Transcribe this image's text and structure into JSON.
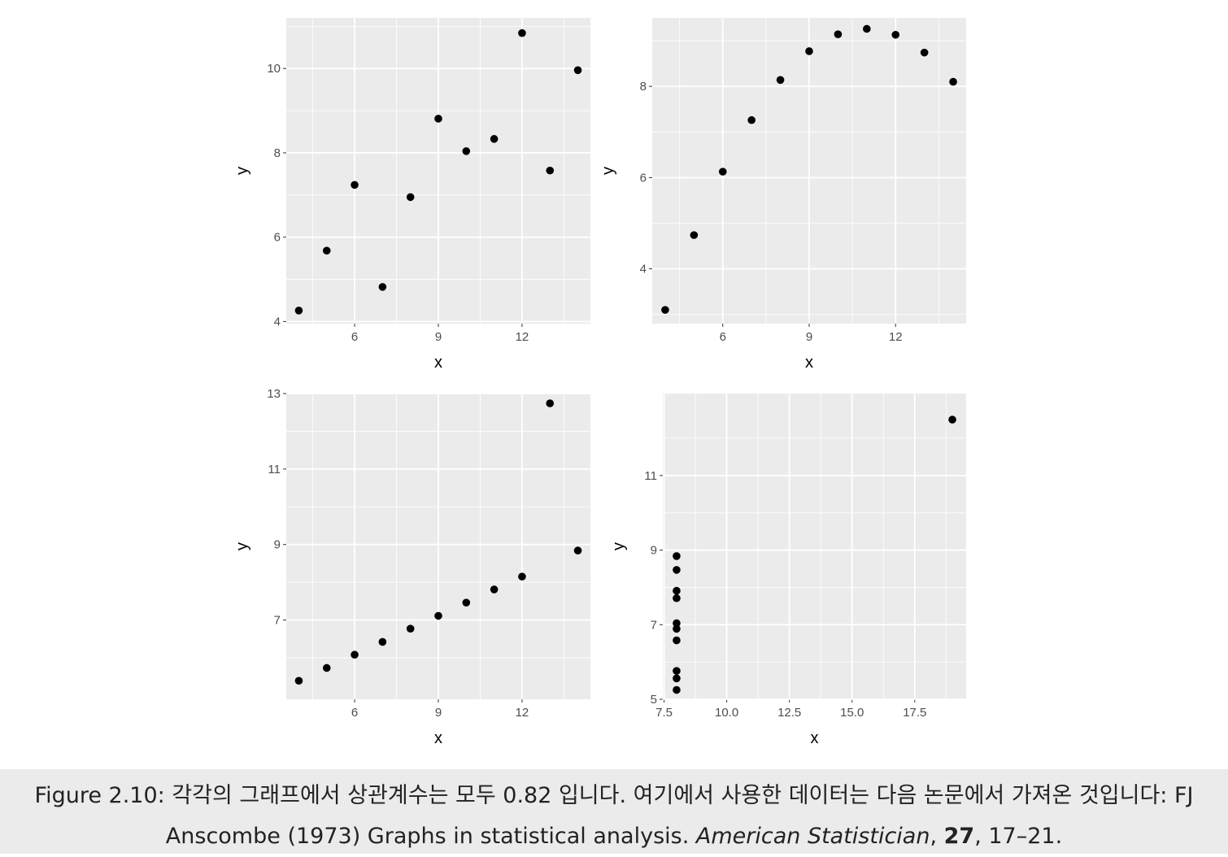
{
  "colors": {
    "panel_background": "#ebebeb",
    "gridline": "#ffffff",
    "point": "#000000",
    "tick_label": "#4d4d4d",
    "axis_title": "#000000"
  },
  "chart_data": [
    {
      "type": "scatter",
      "xlabel": "x",
      "ylabel": "y",
      "x_ticks": [
        "6",
        "9",
        "12"
      ],
      "y_ticks": [
        "4",
        "6",
        "8",
        "10"
      ],
      "xlim": [
        3.55,
        14.45
      ],
      "ylim": [
        3.95,
        11.2
      ],
      "points": [
        {
          "x": 4,
          "y": 4.26
        },
        {
          "x": 5,
          "y": 5.68
        },
        {
          "x": 6,
          "y": 7.24
        },
        {
          "x": 7,
          "y": 4.82
        },
        {
          "x": 8,
          "y": 6.95
        },
        {
          "x": 9,
          "y": 8.81
        },
        {
          "x": 10,
          "y": 8.04
        },
        {
          "x": 11,
          "y": 8.33
        },
        {
          "x": 12,
          "y": 10.84
        },
        {
          "x": 13,
          "y": 7.58
        },
        {
          "x": 14,
          "y": 9.96
        }
      ]
    },
    {
      "type": "scatter",
      "xlabel": "x",
      "ylabel": "y",
      "x_ticks": [
        "6",
        "9",
        "12"
      ],
      "y_ticks": [
        "4",
        "6",
        "8"
      ],
      "xlim": [
        3.55,
        14.45
      ],
      "ylim": [
        2.8,
        9.5
      ],
      "points": [
        {
          "x": 4,
          "y": 3.1
        },
        {
          "x": 5,
          "y": 4.74
        },
        {
          "x": 6,
          "y": 6.13
        },
        {
          "x": 7,
          "y": 7.26
        },
        {
          "x": 8,
          "y": 8.14
        },
        {
          "x": 9,
          "y": 8.77
        },
        {
          "x": 10,
          "y": 9.14
        },
        {
          "x": 11,
          "y": 9.26
        },
        {
          "x": 12,
          "y": 9.13
        },
        {
          "x": 13,
          "y": 8.74
        },
        {
          "x": 14,
          "y": 8.1
        }
      ]
    },
    {
      "type": "scatter",
      "xlabel": "x",
      "ylabel": "y",
      "x_ticks": [
        "6",
        "9",
        "12"
      ],
      "y_ticks": [
        "7",
        "9",
        "11",
        "13"
      ],
      "xlim": [
        3.55,
        14.45
      ],
      "ylim": [
        4.9,
        13.0
      ],
      "points": [
        {
          "x": 4,
          "y": 5.39
        },
        {
          "x": 5,
          "y": 5.73
        },
        {
          "x": 6,
          "y": 6.08
        },
        {
          "x": 7,
          "y": 6.42
        },
        {
          "x": 8,
          "y": 6.77
        },
        {
          "x": 9,
          "y": 7.11
        },
        {
          "x": 10,
          "y": 7.46
        },
        {
          "x": 11,
          "y": 7.81
        },
        {
          "x": 12,
          "y": 8.15
        },
        {
          "x": 13,
          "y": 12.74
        },
        {
          "x": 14,
          "y": 8.84
        }
      ]
    },
    {
      "type": "scatter",
      "xlabel": "x",
      "ylabel": "y",
      "x_ticks": [
        "7.5",
        "10.0",
        "12.5",
        "15.0",
        "17.5"
      ],
      "y_ticks": [
        "5",
        "7",
        "9",
        "11"
      ],
      "xlim": [
        7.45,
        19.55
      ],
      "ylim": [
        5.0,
        13.2
      ],
      "points": [
        {
          "x": 8,
          "y": 6.58
        },
        {
          "x": 8,
          "y": 5.76
        },
        {
          "x": 8,
          "y": 7.71
        },
        {
          "x": 8,
          "y": 8.84
        },
        {
          "x": 8,
          "y": 8.47
        },
        {
          "x": 8,
          "y": 7.04
        },
        {
          "x": 8,
          "y": 5.25
        },
        {
          "x": 19,
          "y": 12.5
        },
        {
          "x": 8,
          "y": 5.56
        },
        {
          "x": 8,
          "y": 7.91
        },
        {
          "x": 8,
          "y": 6.89
        }
      ]
    }
  ],
  "caption": {
    "text_1": "Figure 2.10: 각각의 그래프에서 상관계수는 모두 0.82 입니다. 여기에서 사용한 데이터는 다음 논문에서 가져온 것입니다: FJ Anscombe (1973) Graphs in statistical analysis. ",
    "journal": "American Statistician",
    "text_2": ", ",
    "volume": "27",
    "text_3": ", 17–21."
  }
}
